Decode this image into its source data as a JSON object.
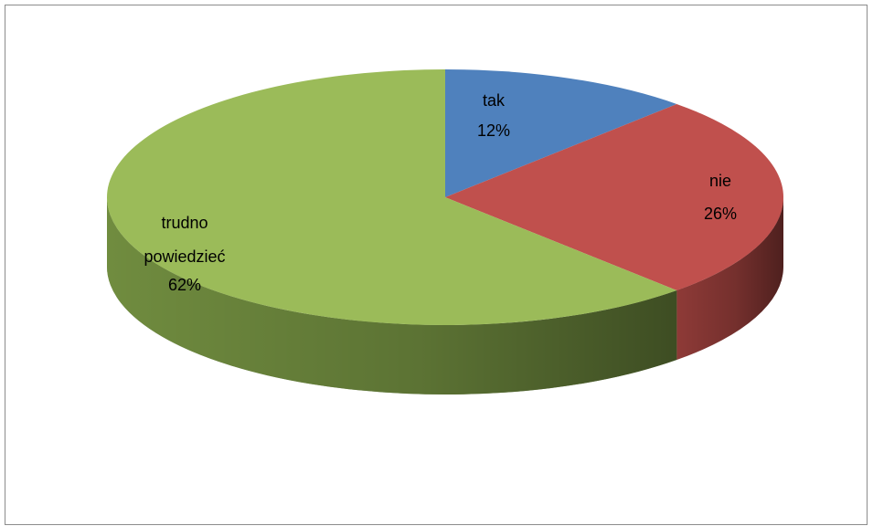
{
  "chart_data": {
    "type": "pie",
    "style": "3d",
    "title": "",
    "slices": [
      {
        "label": "tak",
        "value": 12,
        "value_label": "12%",
        "color": "#4f81bd",
        "side_color": "#2c4a70"
      },
      {
        "label": "nie",
        "value": 26,
        "value_label": "26%",
        "color": "#c0504d",
        "side_color": "#521f1e"
      },
      {
        "label": "trudno powiedzieć",
        "value": 62,
        "value_label": "62%",
        "color": "#9bbb59",
        "side_color": "#3d5321"
      }
    ],
    "legend": "none",
    "data_labels": "inside"
  }
}
